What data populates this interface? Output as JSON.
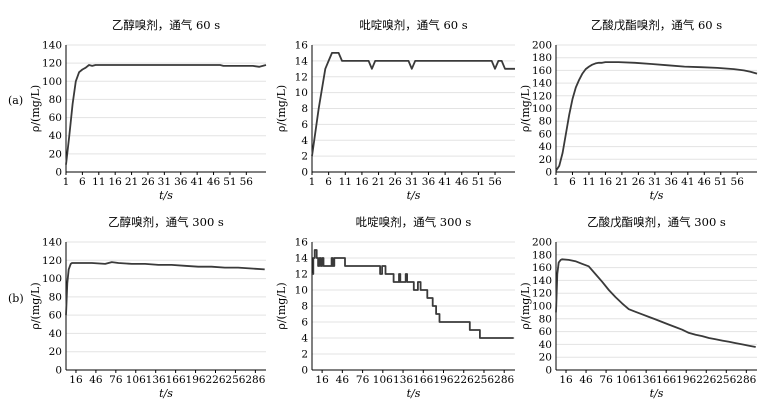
{
  "figure": {
    "row_labels": [
      "(a)",
      "(b)"
    ],
    "x_axis_label": "t/s",
    "y_axis_label": "ρ/(mg/L)"
  },
  "chart_data": [
    {
      "type": "line",
      "row": "(a)",
      "col": 0,
      "title": "乙醇嗅剂，通气 60 s",
      "xlabel": "t/s",
      "ylabel": "ρ/(mg/L)",
      "xlim": [
        1,
        62
      ],
      "ylim": [
        0,
        140
      ],
      "yticks": [
        0,
        20,
        40,
        60,
        80,
        100,
        120,
        140
      ],
      "xticks": [
        1,
        6,
        11,
        16,
        21,
        26,
        31,
        36,
        41,
        46,
        51,
        56
      ],
      "xticklabels": [
        "1",
        "6",
        "11",
        "16",
        "21",
        "26",
        "31",
        "36",
        "41",
        "46",
        "51",
        "56"
      ],
      "step": false,
      "x": [
        1,
        2,
        3,
        4,
        5,
        6,
        7,
        8,
        9,
        10,
        11,
        15,
        20,
        30,
        40,
        48,
        49,
        52,
        55,
        58,
        60,
        62
      ],
      "y": [
        8,
        40,
        75,
        100,
        110,
        113,
        115,
        118,
        117,
        118,
        118,
        118,
        118,
        118,
        118,
        118,
        117,
        117,
        117,
        117,
        116,
        118
      ]
    },
    {
      "type": "line",
      "row": "(a)",
      "col": 1,
      "title": "吡啶嗅剂，通气 60 s",
      "xlabel": "t/s",
      "ylabel": "ρ/(mg/L)",
      "xlim": [
        1,
        62
      ],
      "ylim": [
        0,
        16
      ],
      "yticks": [
        0,
        2,
        4,
        6,
        8,
        10,
        12,
        14,
        16
      ],
      "xticks": [
        1,
        6,
        11,
        16,
        21,
        26,
        31,
        36,
        41,
        46,
        51,
        56
      ],
      "xticklabels": [
        "1",
        "6",
        "11",
        "16",
        "21",
        "26",
        "31",
        "36",
        "41",
        "46",
        "51",
        "56"
      ],
      "step": false,
      "x": [
        1,
        3,
        5,
        6,
        7,
        8,
        9,
        10,
        15,
        18,
        19,
        20,
        25,
        30,
        31,
        32,
        40,
        50,
        55,
        56,
        57,
        58,
        59,
        60,
        62
      ],
      "y": [
        2,
        8,
        13,
        14,
        15,
        15,
        15,
        14,
        14,
        14,
        13,
        14,
        14,
        14,
        13,
        14,
        14,
        14,
        14,
        13,
        14,
        14,
        13,
        13,
        13
      ]
    },
    {
      "type": "line",
      "row": "(a)",
      "col": 2,
      "title": "乙酸戊酯嗅剂，通气 60 s",
      "xlabel": "t/s",
      "ylabel": "ρ/(mg/L)",
      "xlim": [
        1,
        62
      ],
      "ylim": [
        0,
        200
      ],
      "yticks": [
        0,
        20,
        40,
        60,
        80,
        100,
        120,
        140,
        160,
        180,
        200
      ],
      "xticks": [
        1,
        6,
        11,
        16,
        21,
        26,
        31,
        36,
        41,
        46,
        51,
        56
      ],
      "xticklabels": [
        "1",
        "6",
        "11",
        "16",
        "21",
        "26",
        "31",
        "36",
        "41",
        "46",
        "51",
        "56"
      ],
      "step": false,
      "x": [
        1,
        2,
        3,
        4,
        5,
        6,
        7,
        8,
        9,
        10,
        11,
        12,
        13,
        14,
        15,
        16,
        18,
        20,
        25,
        30,
        35,
        40,
        45,
        50,
        55,
        58,
        60,
        62
      ],
      "y": [
        2,
        10,
        30,
        60,
        90,
        115,
        133,
        145,
        155,
        162,
        166,
        169,
        171,
        172,
        172,
        173,
        173,
        173,
        172,
        170,
        168,
        166,
        165,
        164,
        162,
        160,
        158,
        155
      ]
    },
    {
      "type": "line",
      "row": "(b)",
      "col": 0,
      "title": "乙醇嗅剂，通气 300 s",
      "xlabel": "t/s",
      "ylabel": "ρ/(mg/L)",
      "xlim": [
        1,
        302
      ],
      "ylim": [
        0,
        140
      ],
      "yticks": [
        0,
        20,
        40,
        60,
        80,
        100,
        120,
        140
      ],
      "xticks": [
        16,
        46,
        76,
        106,
        136,
        166,
        196,
        226,
        256,
        286
      ],
      "xticklabels": [
        "16",
        "46",
        "76",
        "106",
        "136",
        "166",
        "196",
        "226",
        "256",
        "286"
      ],
      "step": false,
      "x": [
        1,
        3,
        5,
        8,
        10,
        20,
        40,
        60,
        70,
        80,
        100,
        120,
        140,
        160,
        180,
        200,
        220,
        240,
        260,
        280,
        300
      ],
      "y": [
        60,
        95,
        110,
        116,
        117,
        117,
        117,
        116,
        118,
        117,
        116,
        116,
        115,
        115,
        114,
        113,
        113,
        112,
        112,
        111,
        110
      ]
    },
    {
      "type": "line",
      "row": "(b)",
      "col": 1,
      "title": "吡啶嗅剂，通气 300 s",
      "xlabel": "t/s",
      "ylabel": "ρ/(mg/L)",
      "xlim": [
        1,
        302
      ],
      "ylim": [
        0,
        16
      ],
      "yticks": [
        0,
        2,
        4,
        6,
        8,
        10,
        12,
        14,
        16
      ],
      "xticks": [
        16,
        46,
        76,
        106,
        136,
        166,
        196,
        226,
        256,
        286
      ],
      "xticklabels": [
        "16",
        "46",
        "76",
        "106",
        "136",
        "166",
        "196",
        "226",
        "256",
        "286"
      ],
      "step": true,
      "x": [
        1,
        3,
        5,
        8,
        10,
        12,
        14,
        16,
        18,
        30,
        32,
        34,
        50,
        52,
        56,
        80,
        100,
        102,
        105,
        110,
        112,
        120,
        122,
        130,
        132,
        140,
        142,
        150,
        152,
        158,
        160,
        162,
        170,
        172,
        175,
        180,
        185,
        190,
        195,
        210,
        215,
        225,
        235,
        240,
        250,
        260,
        300
      ],
      "y": [
        12,
        14,
        15,
        14,
        13,
        14,
        13,
        14,
        13,
        14,
        13,
        14,
        13,
        13,
        13,
        13,
        13,
        12,
        13,
        12,
        12,
        12,
        11,
        12,
        11,
        12,
        11,
        11,
        10,
        11,
        11,
        10,
        10,
        9,
        9,
        8,
        7,
        6,
        6,
        6,
        6,
        6,
        5,
        5,
        4,
        4,
        4
      ]
    },
    {
      "type": "line",
      "row": "(b)",
      "col": 2,
      "title": "乙酸戊酯嗅剂，通气 300 s",
      "xlabel": "t/s",
      "ylabel": "ρ/(mg/L)",
      "xlim": [
        1,
        302
      ],
      "ylim": [
        0,
        200
      ],
      "yticks": [
        0,
        20,
        40,
        60,
        80,
        100,
        120,
        140,
        160,
        180,
        200
      ],
      "xticks": [
        16,
        46,
        76,
        106,
        136,
        166,
        196,
        226,
        256,
        286
      ],
      "xticklabels": [
        "16",
        "46",
        "76",
        "106",
        "136",
        "166",
        "196",
        "226",
        "256",
        "286"
      ],
      "step": false,
      "x": [
        1,
        3,
        5,
        8,
        10,
        20,
        30,
        40,
        50,
        60,
        70,
        80,
        90,
        100,
        110,
        120,
        130,
        140,
        150,
        160,
        170,
        180,
        190,
        200,
        210,
        220,
        230,
        240,
        250,
        260,
        270,
        280,
        290,
        300
      ],
      "y": [
        90,
        150,
        168,
        172,
        173,
        172,
        170,
        166,
        162,
        150,
        138,
        125,
        114,
        104,
        95,
        91,
        87,
        83,
        79,
        75,
        71,
        67,
        63,
        58,
        55,
        53,
        50,
        48,
        46,
        44,
        42,
        40,
        38,
        36
      ]
    }
  ]
}
